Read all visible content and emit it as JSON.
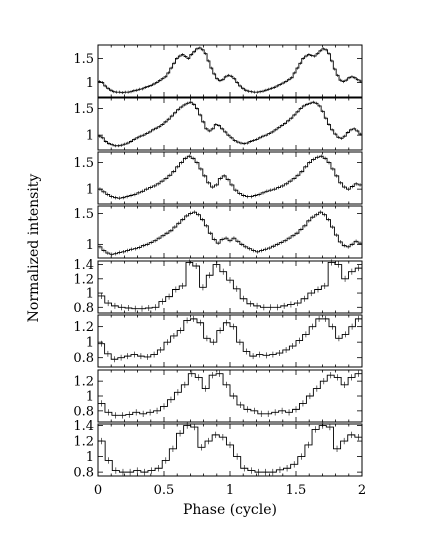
{
  "chart_data": {
    "type": "line",
    "xlabel": "Phase (cycle)",
    "ylabel": "Normalized intensity",
    "x_ticks": [
      "0",
      "0.5",
      "1",
      "1.5",
      "2"
    ],
    "x_tick_values": [
      0,
      0.5,
      1,
      1.5,
      2
    ],
    "xlim": [
      0,
      2
    ],
    "line_color": "#000000",
    "panels": [
      {
        "ylim": [
          0.7,
          1.78
        ],
        "y_ticks": [
          "1.5",
          "1"
        ],
        "y_tick_values": [
          1.5,
          1.0
        ],
        "values": [
          1.02,
          1.0,
          0.93,
          0.88,
          0.84,
          0.81,
          0.8,
          0.8,
          0.79,
          0.8,
          0.8,
          0.81,
          0.83,
          0.84,
          0.86,
          0.87,
          0.9,
          0.92,
          0.94,
          0.97,
          1.0,
          1.04,
          1.08,
          1.12,
          1.2,
          1.3,
          1.4,
          1.5,
          1.55,
          1.58,
          1.54,
          1.5,
          1.58,
          1.64,
          1.7,
          1.72,
          1.68,
          1.6,
          1.45,
          1.3,
          1.18,
          1.08,
          1.04,
          1.06,
          1.12,
          1.15,
          1.13,
          1.08,
          1.0,
          0.93,
          0.88,
          0.84,
          0.82,
          0.81,
          0.8,
          0.8,
          0.81,
          0.82,
          0.84,
          0.86,
          0.88,
          0.9,
          0.93,
          0.96,
          0.99,
          1.02,
          1.06,
          1.1,
          1.2,
          1.3,
          1.4,
          1.5,
          1.55,
          1.58,
          1.56,
          1.55,
          1.6,
          1.66,
          1.7,
          1.68,
          1.6,
          1.45,
          1.28,
          1.15,
          1.05,
          1.02,
          1.05,
          1.1,
          1.12,
          1.1,
          1.06,
          1.03
        ]
      },
      {
        "ylim": [
          0.72,
          1.7
        ],
        "y_ticks": [
          "1.5",
          "1"
        ],
        "y_tick_values": [
          1.5,
          1.0
        ],
        "values": [
          0.98,
          0.95,
          0.88,
          0.84,
          0.82,
          0.8,
          0.8,
          0.81,
          0.83,
          0.85,
          0.88,
          0.92,
          0.95,
          0.98,
          1.0,
          1.03,
          1.06,
          1.1,
          1.13,
          1.16,
          1.2,
          1.25,
          1.3,
          1.36,
          1.42,
          1.48,
          1.53,
          1.57,
          1.6,
          1.62,
          1.58,
          1.5,
          1.38,
          1.25,
          1.12,
          1.08,
          1.12,
          1.2,
          1.18,
          1.12,
          1.06,
          1.0,
          0.95,
          0.9,
          0.87,
          0.85,
          0.84,
          0.85,
          0.88,
          0.9,
          0.92,
          0.95,
          0.98,
          1.0,
          1.03,
          1.06,
          1.1,
          1.14,
          1.18,
          1.22,
          1.27,
          1.32,
          1.38,
          1.44,
          1.5,
          1.55,
          1.58,
          1.6,
          1.62,
          1.6,
          1.55,
          1.45,
          1.32,
          1.2,
          1.1,
          1.02,
          0.96,
          0.94,
          0.98,
          1.05,
          1.1,
          1.12,
          1.08,
          1.02
        ]
      },
      {
        "ylim": [
          0.72,
          1.7
        ],
        "y_ticks": [
          "1.5",
          "1"
        ],
        "y_tick_values": [
          1.5,
          1.0
        ],
        "values": [
          1.0,
          0.95,
          0.9,
          0.86,
          0.84,
          0.83,
          0.84,
          0.86,
          0.88,
          0.9,
          0.93,
          0.96,
          1.0,
          1.03,
          1.06,
          1.1,
          1.15,
          1.2,
          1.26,
          1.33,
          1.42,
          1.5,
          1.58,
          1.62,
          1.58,
          1.5,
          1.38,
          1.25,
          1.12,
          1.04,
          1.08,
          1.2,
          1.25,
          1.18,
          1.08,
          0.98,
          0.92,
          0.88,
          0.86,
          0.86,
          0.88,
          0.9,
          0.93,
          0.96,
          0.98,
          1.0,
          1.03,
          1.06,
          1.1,
          1.15,
          1.2,
          1.26,
          1.33,
          1.42,
          1.5,
          1.56,
          1.6,
          1.62,
          1.58,
          1.5,
          1.38,
          1.25,
          1.12,
          1.04,
          1.0,
          1.05,
          1.1,
          1.08
        ]
      },
      {
        "ylim": [
          0.78,
          1.62
        ],
        "y_ticks": [
          "1.5",
          "1"
        ],
        "y_tick_values": [
          1.5,
          1.0
        ],
        "values": [
          0.96,
          0.9,
          0.86,
          0.84,
          0.85,
          0.87,
          0.88,
          0.9,
          0.92,
          0.93,
          0.95,
          0.98,
          1.0,
          1.03,
          1.06,
          1.1,
          1.14,
          1.18,
          1.22,
          1.28,
          1.34,
          1.4,
          1.46,
          1.5,
          1.52,
          1.48,
          1.4,
          1.3,
          1.18,
          1.08,
          1.02,
          1.08,
          1.1,
          1.06,
          1.1,
          1.05,
          1.0,
          0.96,
          0.93,
          0.9,
          0.88,
          0.9,
          0.92,
          0.94,
          0.97,
          1.0,
          1.03,
          1.06,
          1.1,
          1.14,
          1.18,
          1.24,
          1.3,
          1.38,
          1.44,
          1.48,
          1.52,
          1.48,
          1.4,
          1.28,
          1.15,
          1.04,
          0.98,
          0.96,
          1.0,
          1.05,
          1.02
        ]
      },
      {
        "ylim": [
          0.72,
          1.45
        ],
        "y_ticks": [
          "1.4",
          "1.2",
          "1",
          "0.8"
        ],
        "y_tick_values": [
          1.4,
          1.2,
          1.0,
          0.8
        ],
        "values": [
          0.96,
          0.86,
          0.82,
          0.8,
          0.79,
          0.78,
          0.78,
          0.79,
          0.8,
          0.88,
          0.95,
          1.05,
          1.1,
          1.43,
          1.38,
          1.08,
          1.25,
          1.4,
          1.3,
          1.18,
          1.06,
          0.92,
          0.85,
          0.82,
          0.8,
          0.8,
          0.8,
          0.82,
          0.84,
          0.86,
          0.92,
          1.0,
          1.05,
          1.1,
          1.43,
          1.4,
          1.2,
          1.3,
          1.35
        ]
      },
      {
        "ylim": [
          0.68,
          1.35
        ],
        "y_ticks": [
          "1.2",
          "1",
          "0.8"
        ],
        "y_tick_values": [
          1.2,
          1.0,
          0.8
        ],
        "values": [
          0.98,
          0.85,
          0.78,
          0.8,
          0.82,
          0.84,
          0.82,
          0.81,
          0.84,
          0.9,
          1.0,
          1.08,
          1.15,
          1.28,
          1.3,
          1.25,
          1.05,
          1.0,
          1.15,
          1.25,
          1.2,
          1.0,
          0.88,
          0.82,
          0.84,
          0.83,
          0.84,
          0.86,
          0.9,
          0.95,
          1.02,
          1.1,
          1.2,
          1.3,
          1.3,
          1.2,
          1.05,
          1.1,
          1.2,
          1.3
        ]
      },
      {
        "ylim": [
          0.65,
          1.35
        ],
        "y_ticks": [
          "1.2",
          "1",
          "0.8"
        ],
        "y_tick_values": [
          1.2,
          1.0,
          0.8
        ],
        "values": [
          0.9,
          0.78,
          0.74,
          0.74,
          0.75,
          0.78,
          0.76,
          0.78,
          0.8,
          0.86,
          0.95,
          1.05,
          1.15,
          1.3,
          1.25,
          1.1,
          1.28,
          1.3,
          1.15,
          1.0,
          0.88,
          0.82,
          0.8,
          0.76,
          0.76,
          0.78,
          0.8,
          0.78,
          0.82,
          0.9,
          1.0,
          1.1,
          1.2,
          1.28,
          1.25,
          1.15,
          1.25,
          1.3
        ]
      },
      {
        "ylim": [
          0.75,
          1.42
        ],
        "y_ticks": [
          "1.4",
          "1.2",
          "1",
          "0.8"
        ],
        "y_tick_values": [
          1.4,
          1.2,
          1.0,
          0.8
        ],
        "values": [
          1.2,
          0.95,
          0.82,
          0.8,
          0.8,
          0.82,
          0.8,
          0.82,
          0.85,
          0.95,
          1.1,
          1.3,
          1.4,
          1.38,
          1.12,
          1.2,
          1.28,
          1.25,
          1.15,
          1.0,
          0.85,
          0.82,
          0.8,
          0.8,
          0.8,
          0.83,
          0.85,
          0.9,
          1.0,
          1.15,
          1.35,
          1.4,
          1.38,
          1.1,
          1.2,
          1.28,
          1.25
        ]
      }
    ]
  }
}
